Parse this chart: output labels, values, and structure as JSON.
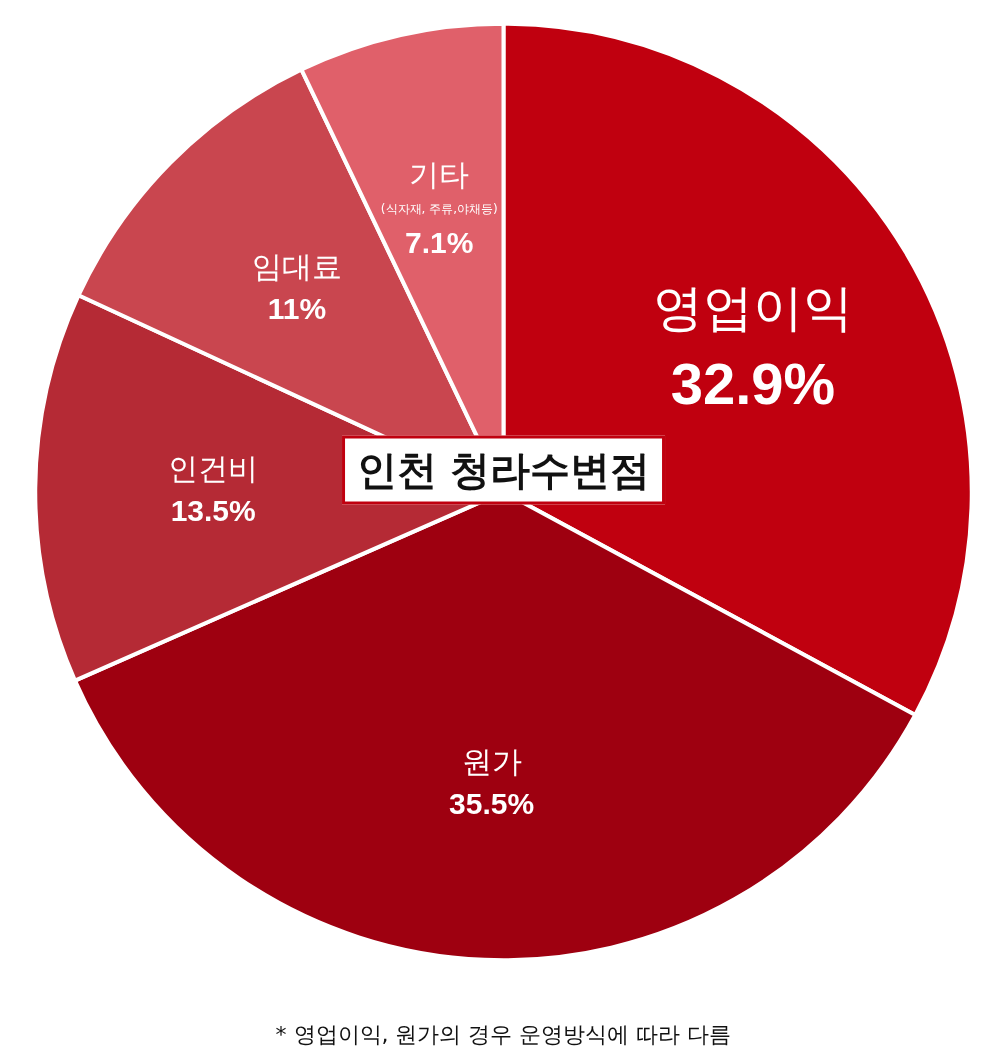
{
  "chart_data": {
    "type": "pie",
    "title": "인천 청라수변점",
    "categories": [
      "영업이익",
      "원가",
      "인건비",
      "임대료",
      "기타\n(식자재, 주류,야채등)"
    ],
    "values": [
      32.9,
      35.5,
      13.5,
      11,
      7.1
    ],
    "colors": [
      "#c0000f",
      "#9e0010",
      "#b52a35",
      "#c9464f",
      "#e0606a"
    ],
    "value_labels": [
      "32.9%",
      "35.5%",
      "13.5%",
      "11%",
      "7.1%"
    ],
    "legend": false,
    "annotations": [
      "* 영업이익, 원가의 경우 운영방식에 따라 다름"
    ]
  }
}
